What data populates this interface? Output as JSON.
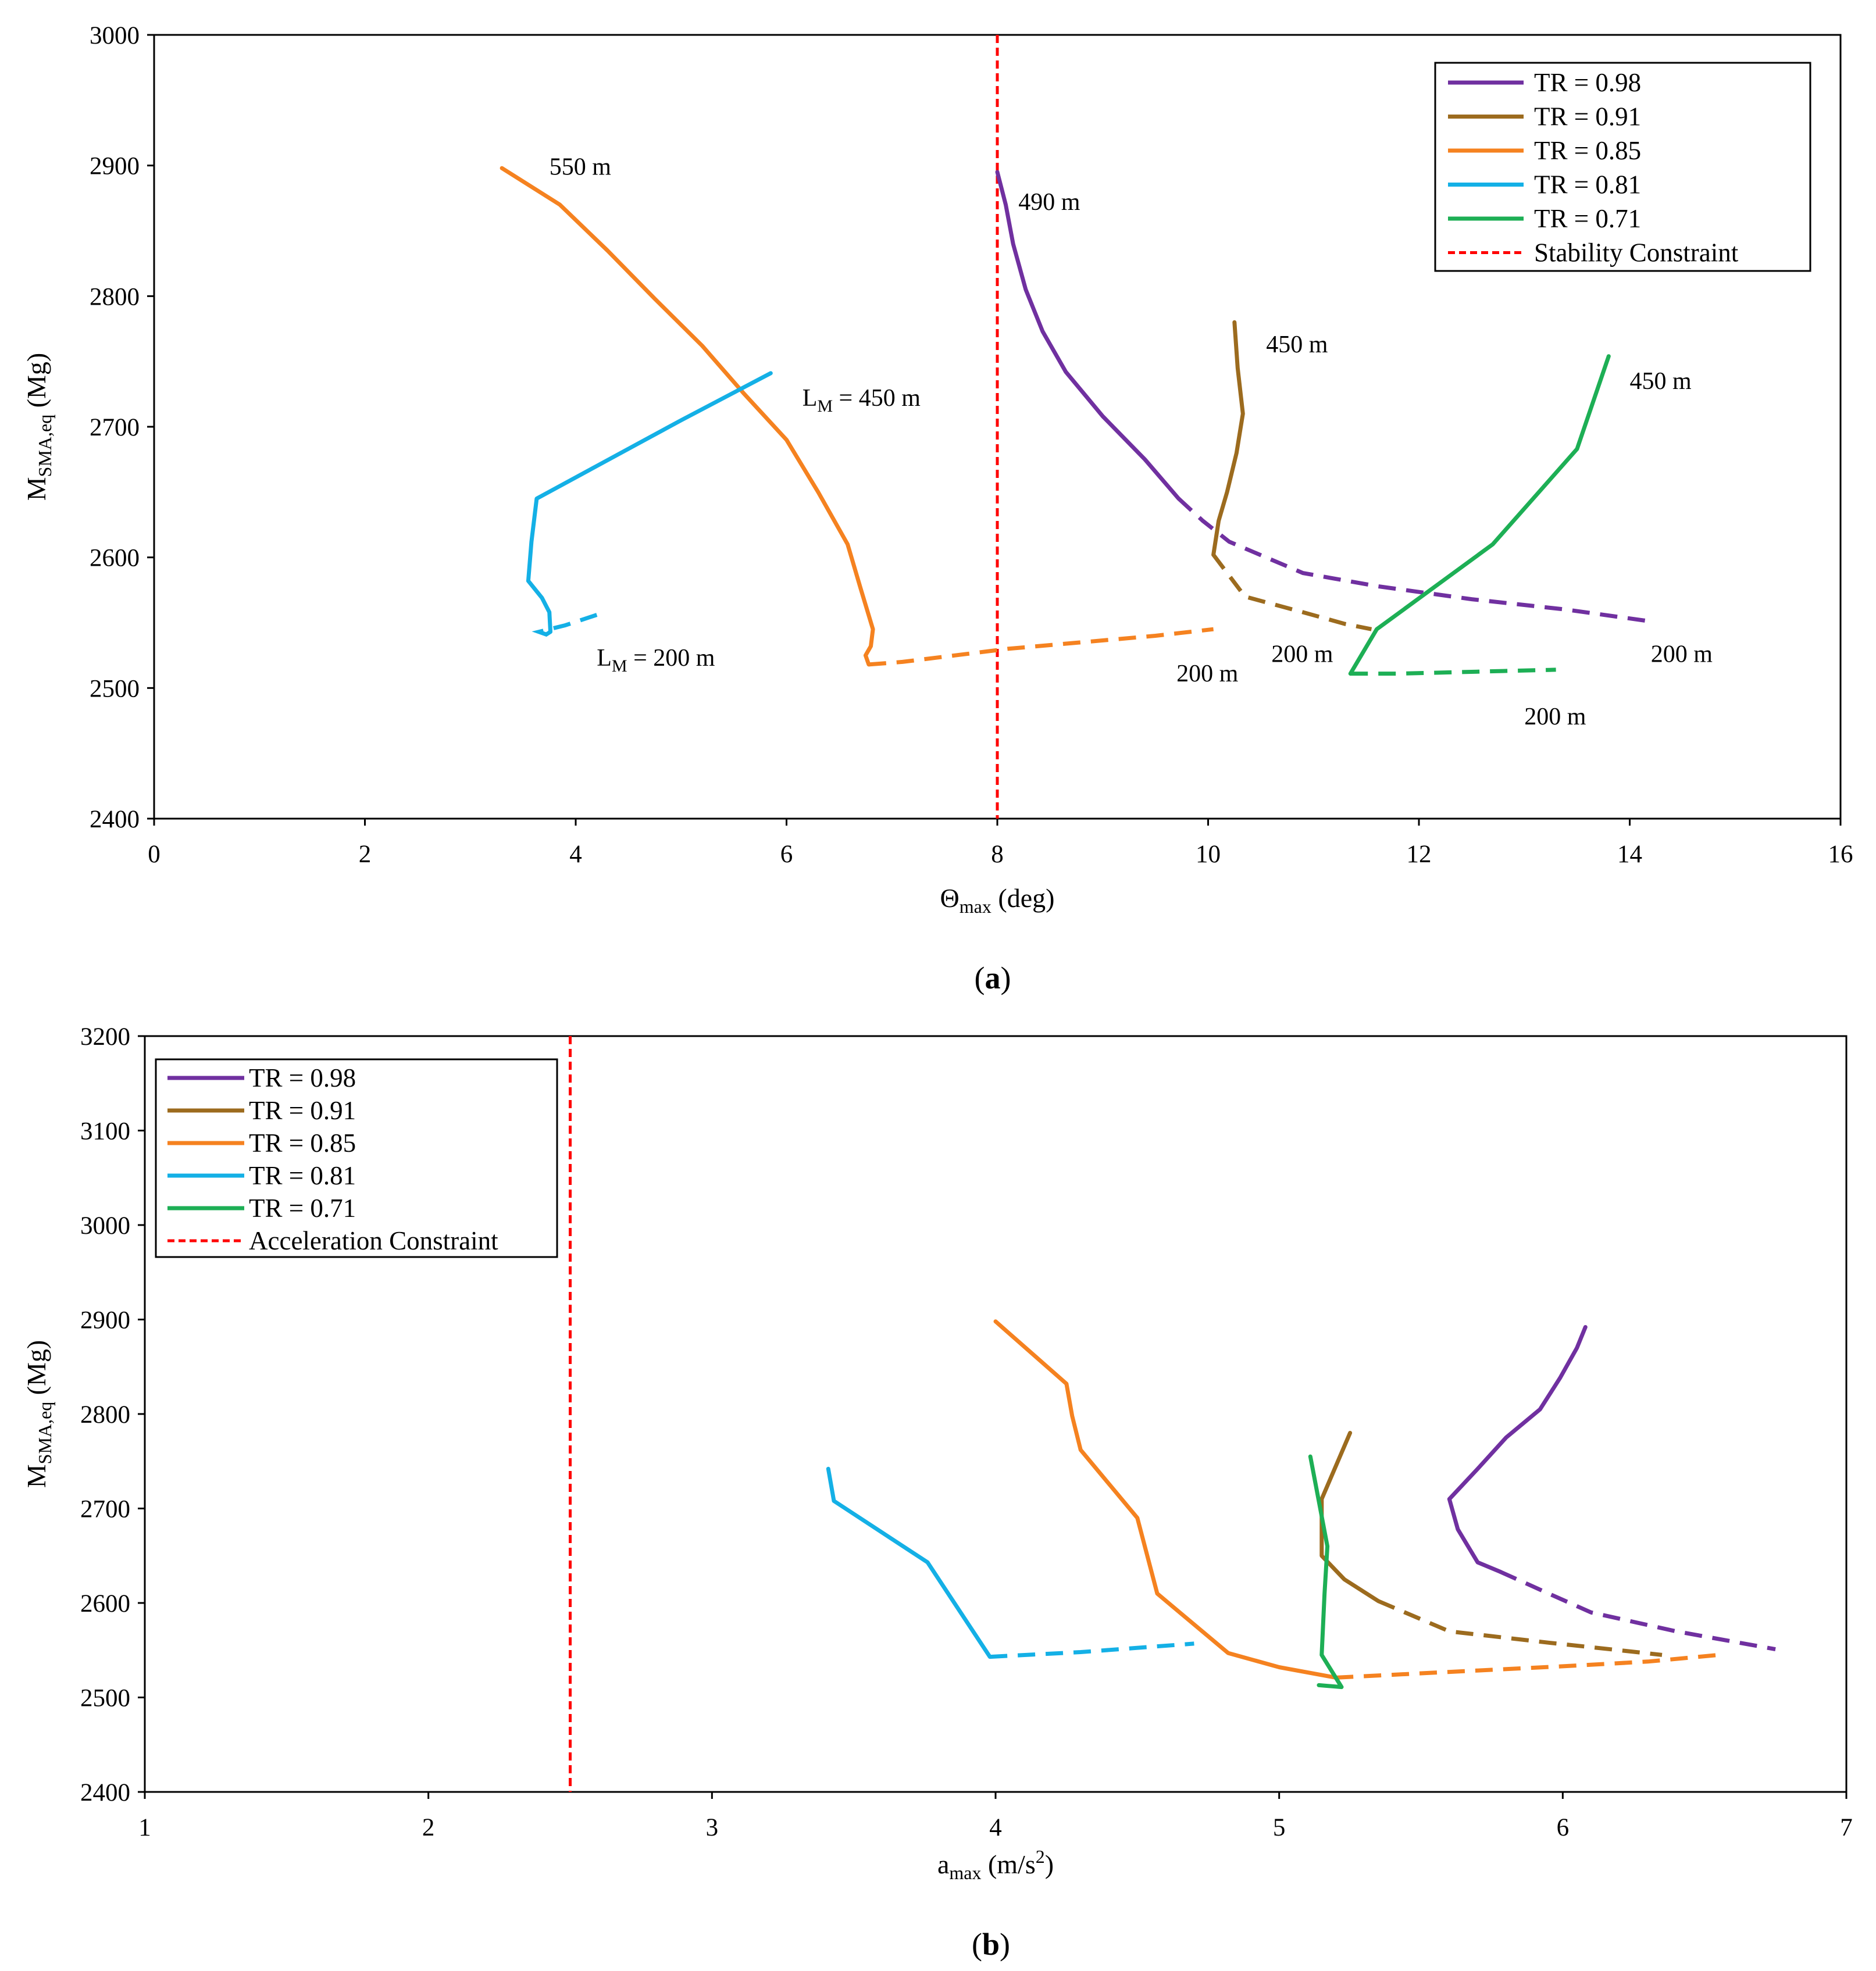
{
  "figure": {
    "colors": {
      "TR = 0.98": "#7030A0",
      "TR = 0.91": "#9C6B1E",
      "TR = 0.85": "#F58220",
      "TR = 0.81": "#14B0E6",
      "TR = 0.71": "#1DAF55",
      "constraint": "#FF0000"
    }
  },
  "chart_data": [
    {
      "type": "line",
      "panel_label": "(a)",
      "xlabel": "Θ",
      "xlabel_sub": "max",
      "xlabel_unit": " (deg)",
      "ylabel": "M",
      "ylabel_sub": "SMA,eq",
      "ylabel_unit": " (Mg)",
      "xlim": [
        0,
        16
      ],
      "ylim": [
        2400,
        3000
      ],
      "xticks": [
        "0",
        "2",
        "4",
        "6",
        "8",
        "10",
        "12",
        "14",
        "16"
      ],
      "yticks": [
        "2400",
        "2500",
        "2600",
        "2700",
        "2800",
        "2900",
        "3000"
      ],
      "legend_position": "top-right",
      "constraint": {
        "name": "Stability Constraint",
        "x": 8
      },
      "series": [
        {
          "name": "TR = 0.98",
          "solid": [
            [
              8.0,
              2895
            ],
            [
              8.08,
              2870
            ],
            [
              8.15,
              2840
            ],
            [
              8.27,
              2805
            ],
            [
              8.43,
              2773
            ],
            [
              8.65,
              2742
            ],
            [
              9.0,
              2708
            ],
            [
              9.4,
              2675
            ],
            [
              9.72,
              2645
            ]
          ],
          "dashed": [
            [
              9.72,
              2645
            ],
            [
              9.95,
              2628
            ],
            [
              10.2,
              2612
            ],
            [
              10.55,
              2600
            ],
            [
              10.9,
              2588
            ],
            [
              11.6,
              2578
            ],
            [
              12.5,
              2568
            ],
            [
              13.4,
              2560
            ],
            [
              14.2,
              2551
            ]
          ]
        },
        {
          "name": "TR = 0.91",
          "solid": [
            [
              10.25,
              2780
            ],
            [
              10.28,
              2745
            ],
            [
              10.33,
              2710
            ],
            [
              10.27,
              2680
            ],
            [
              10.18,
              2650
            ],
            [
              10.1,
              2628
            ],
            [
              10.05,
              2602
            ]
          ],
          "dashed": [
            [
              10.05,
              2602
            ],
            [
              10.35,
              2570
            ],
            [
              10.9,
              2558
            ],
            [
              11.3,
              2549
            ],
            [
              11.55,
              2545
            ]
          ]
        },
        {
          "name": "TR = 0.85",
          "solid": [
            [
              3.3,
              2898
            ],
            [
              3.85,
              2870
            ],
            [
              4.3,
              2835
            ],
            [
              4.75,
              2798
            ],
            [
              5.2,
              2762
            ],
            [
              5.6,
              2725
            ],
            [
              6.0,
              2690
            ],
            [
              6.3,
              2650
            ],
            [
              6.58,
              2610
            ],
            [
              6.7,
              2577
            ],
            [
              6.82,
              2545
            ],
            [
              6.8,
              2532
            ],
            [
              6.75,
              2525
            ],
            [
              6.78,
              2518
            ]
          ],
          "dashed": [
            [
              6.78,
              2518
            ],
            [
              7.1,
              2520
            ],
            [
              7.6,
              2525
            ],
            [
              8.1,
              2530
            ],
            [
              8.8,
              2535
            ],
            [
              9.5,
              2540
            ],
            [
              10.05,
              2545
            ]
          ]
        },
        {
          "name": "TR = 0.81",
          "solid": [
            [
              5.85,
              2741
            ],
            [
              5.0,
              2705
            ],
            [
              4.2,
              2670
            ],
            [
              3.63,
              2645
            ],
            [
              3.58,
              2612
            ],
            [
              3.55,
              2582
            ],
            [
              3.68,
              2569
            ],
            [
              3.75,
              2558
            ],
            [
              3.76,
              2543
            ]
          ],
          "dashed": [
            [
              3.76,
              2543
            ],
            [
              3.72,
              2541
            ],
            [
              3.65,
              2543
            ],
            [
              3.9,
              2548
            ],
            [
              4.2,
              2556
            ]
          ]
        },
        {
          "name": "TR = 0.71",
          "solid": [
            [
              13.8,
              2754
            ],
            [
              13.5,
              2683
            ],
            [
              12.7,
              2610
            ],
            [
              11.6,
              2545
            ],
            [
              11.35,
              2511
            ]
          ],
          "dashed": [
            [
              11.35,
              2511
            ],
            [
              11.8,
              2511
            ],
            [
              12.3,
              2512
            ],
            [
              12.8,
              2513
            ],
            [
              13.3,
              2514
            ]
          ]
        }
      ],
      "annotations": [
        {
          "text": "550 m",
          "x": 3.75,
          "y": 2893
        },
        {
          "text": "490 m",
          "x": 8.2,
          "y": 2866
        },
        {
          "text": "450 m",
          "x": 10.55,
          "y": 2757
        },
        {
          "text": "450 m",
          "x": 14.0,
          "y": 2729
        },
        {
          "text": "200 m",
          "x": 10.6,
          "y": 2520
        },
        {
          "text": "200 m",
          "x": 9.7,
          "y": 2505
        },
        {
          "text": "200 m",
          "x": 14.2,
          "y": 2520
        },
        {
          "text": "200 m",
          "x": 13.0,
          "y": 2472
        }
      ],
      "lm_annotations": [
        {
          "prefix": "L",
          "sub": "M",
          "suffix": " = 450 m",
          "x": 6.15,
          "y": 2716
        },
        {
          "prefix": "L",
          "sub": "M",
          "suffix": " = 200 m",
          "x": 4.2,
          "y": 2517
        }
      ]
    },
    {
      "type": "line",
      "panel_label": "(b)",
      "xlabel": "a",
      "xlabel_sub": "max",
      "xlabel_unit": " (m/s",
      "xlabel_sup": "2",
      "xlabel_close": ")",
      "ylabel": "M",
      "ylabel_sub": "SMA,eq",
      "ylabel_unit": " (Mg)",
      "xlim": [
        1,
        7
      ],
      "ylim": [
        2400,
        3200
      ],
      "xticks": [
        "1",
        "2",
        "3",
        "4",
        "5",
        "6",
        "7"
      ],
      "yticks": [
        "2400",
        "2500",
        "2600",
        "2700",
        "2800",
        "2900",
        "3000",
        "3100",
        "3200"
      ],
      "legend_position": "top-left",
      "constraint": {
        "name": "Acceleration Constraint",
        "x": 2.5
      },
      "series": [
        {
          "name": "TR = 0.98",
          "solid": [
            [
              6.08,
              2892
            ],
            [
              6.05,
              2870
            ],
            [
              5.99,
              2838
            ],
            [
              5.92,
              2805
            ],
            [
              5.8,
              2775
            ],
            [
              5.7,
              2742
            ],
            [
              5.6,
              2710
            ],
            [
              5.63,
              2678
            ],
            [
              5.7,
              2643
            ],
            [
              5.78,
              2633
            ]
          ],
          "dashed": [
            [
              5.78,
              2633
            ],
            [
              5.95,
              2610
            ],
            [
              6.1,
              2590
            ],
            [
              6.4,
              2570
            ],
            [
              6.75,
              2551
            ]
          ]
        },
        {
          "name": "TR = 0.91",
          "solid": [
            [
              5.25,
              2780
            ],
            [
              5.15,
              2710
            ],
            [
              5.15,
              2650
            ],
            [
              5.23,
              2625
            ],
            [
              5.35,
              2602
            ]
          ],
          "dashed": [
            [
              5.35,
              2602
            ],
            [
              5.6,
              2570
            ],
            [
              5.95,
              2558
            ],
            [
              6.2,
              2550
            ],
            [
              6.35,
              2545
            ]
          ]
        },
        {
          "name": "TR = 0.85",
          "solid": [
            [
              4.0,
              2898
            ],
            [
              4.25,
              2832
            ],
            [
              4.27,
              2798
            ],
            [
              4.3,
              2762
            ],
            [
              4.5,
              2690
            ],
            [
              4.57,
              2610
            ],
            [
              4.82,
              2547
            ],
            [
              5.0,
              2532
            ],
            [
              5.2,
              2521
            ]
          ],
          "dashed": [
            [
              5.2,
              2521
            ],
            [
              5.6,
              2527
            ],
            [
              6.0,
              2533
            ],
            [
              6.3,
              2538
            ],
            [
              6.55,
              2545
            ]
          ]
        },
        {
          "name": "TR = 0.81",
          "solid": [
            [
              3.41,
              2742
            ],
            [
              3.43,
              2708
            ],
            [
              3.76,
              2643
            ],
            [
              3.98,
              2543
            ]
          ],
          "dashed": [
            [
              3.98,
              2543
            ],
            [
              4.3,
              2548
            ],
            [
              4.7,
              2557
            ]
          ]
        },
        {
          "name": "TR = 0.71",
          "solid": [
            [
              5.11,
              2755
            ],
            [
              5.17,
              2660
            ],
            [
              5.16,
              2610
            ],
            [
              5.15,
              2545
            ],
            [
              5.22,
              2511
            ],
            [
              5.14,
              2513
            ]
          ],
          "dashed": []
        }
      ],
      "annotations": [],
      "lm_annotations": []
    }
  ]
}
